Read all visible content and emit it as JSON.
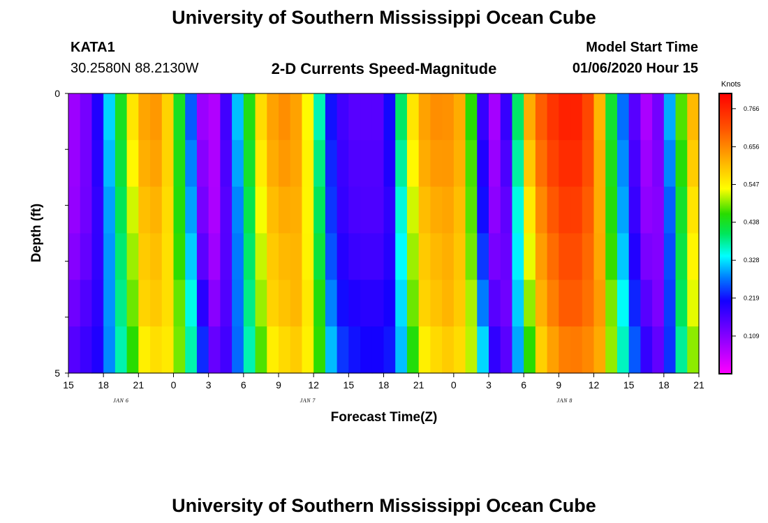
{
  "page": {
    "title_top": "University of Southern Mississippi Ocean Cube",
    "title_bottom": "University of Southern Mississippi Ocean Cube",
    "station_id": "KATA1",
    "coordinates": "30.2580N 88.2130W",
    "plot_title": "2-D Currents Speed-Magnitude",
    "model_start_label": "Model Start Time",
    "model_start_value": "01/06/2020 Hour 15"
  },
  "chart_data": {
    "type": "heatmap",
    "title": "2-D Currents Speed-Magnitude",
    "xlabel": "Forecast Time(Z)",
    "ylabel": "Depth (ft)",
    "x_tick_labels": [
      "15",
      "18",
      "21",
      "0",
      "3",
      "6",
      "9",
      "12",
      "15",
      "18",
      "21",
      "0",
      "3",
      "6",
      "9",
      "12",
      "15",
      "18",
      "21"
    ],
    "date_labels": [
      {
        "text": "JAN 6",
        "hour_offset": 4.5
      },
      {
        "text": "JAN 7",
        "hour_offset": 20.5
      },
      {
        "text": "JAN 8",
        "hour_offset": 42.5
      }
    ],
    "x_range_hours": [
      0,
      54
    ],
    "y_tick_labels": [
      "0",
      "5"
    ],
    "y_range": [
      0,
      5
    ],
    "colorbar": {
      "unit": "Knots",
      "tick_labels": [
        "0.766",
        "0.656",
        "0.547",
        "0.438",
        "0.328",
        "0.219",
        "0.109"
      ],
      "range": [
        0.0,
        0.81
      ]
    },
    "depth_rows": 6,
    "row_modifiers": [
      {
        "peak": 1.0,
        "base": 0.0,
        "shift": 0.0
      },
      {
        "peak": 0.97,
        "base": 0.01,
        "shift": 0.1
      },
      {
        "peak": 0.93,
        "base": 0.02,
        "shift": 0.2
      },
      {
        "peak": 0.88,
        "base": 0.04,
        "shift": 0.3
      },
      {
        "peak": 0.82,
        "base": 0.07,
        "shift": 0.45
      },
      {
        "peak": 0.74,
        "base": 0.1,
        "shift": 0.6
      }
    ],
    "surface_speed_profile": [
      {
        "h": 0.0,
        "v": 0.07
      },
      {
        "h": 2.0,
        "v": 0.14
      },
      {
        "h": 3.0,
        "v": 0.26
      },
      {
        "h": 4.0,
        "v": 0.38
      },
      {
        "h": 5.0,
        "v": 0.5
      },
      {
        "h": 6.0,
        "v": 0.62
      },
      {
        "h": 7.5,
        "v": 0.64
      },
      {
        "h": 8.5,
        "v": 0.58
      },
      {
        "h": 9.5,
        "v": 0.44
      },
      {
        "h": 10.5,
        "v": 0.26
      },
      {
        "h": 11.2,
        "v": 0.12
      },
      {
        "h": 12.0,
        "v": 0.04
      },
      {
        "h": 13.0,
        "v": 0.1
      },
      {
        "h": 14.0,
        "v": 0.24
      },
      {
        "h": 15.0,
        "v": 0.38
      },
      {
        "h": 16.0,
        "v": 0.52
      },
      {
        "h": 17.0,
        "v": 0.62
      },
      {
        "h": 19.0,
        "v": 0.66
      },
      {
        "h": 20.0,
        "v": 0.6
      },
      {
        "h": 21.0,
        "v": 0.48
      },
      {
        "h": 22.0,
        "v": 0.26
      },
      {
        "h": 23.0,
        "v": 0.18
      },
      {
        "h": 24.5,
        "v": 0.15
      },
      {
        "h": 26.5,
        "v": 0.15
      },
      {
        "h": 27.3,
        "v": 0.18
      },
      {
        "h": 28.0,
        "v": 0.3
      },
      {
        "h": 29.0,
        "v": 0.5
      },
      {
        "h": 30.0,
        "v": 0.62
      },
      {
        "h": 32.0,
        "v": 0.66
      },
      {
        "h": 33.5,
        "v": 0.62
      },
      {
        "h": 34.5,
        "v": 0.46
      },
      {
        "h": 35.0,
        "v": 0.26
      },
      {
        "h": 36.0,
        "v": 0.1
      },
      {
        "h": 37.0,
        "v": 0.06
      },
      {
        "h": 37.5,
        "v": 0.18
      },
      {
        "h": 38.5,
        "v": 0.4
      },
      {
        "h": 39.5,
        "v": 0.62
      },
      {
        "h": 40.5,
        "v": 0.7
      },
      {
        "h": 42.0,
        "v": 0.77
      },
      {
        "h": 43.5,
        "v": 0.77
      },
      {
        "h": 45.0,
        "v": 0.7
      },
      {
        "h": 46.0,
        "v": 0.52
      },
      {
        "h": 47.0,
        "v": 0.34
      },
      {
        "h": 48.0,
        "v": 0.2
      },
      {
        "h": 49.0,
        "v": 0.1
      },
      {
        "h": 50.0,
        "v": 0.05
      },
      {
        "h": 51.0,
        "v": 0.2
      },
      {
        "h": 52.0,
        "v": 0.4
      },
      {
        "h": 53.0,
        "v": 0.55
      },
      {
        "h": 54.0,
        "v": 0.66
      }
    ]
  }
}
